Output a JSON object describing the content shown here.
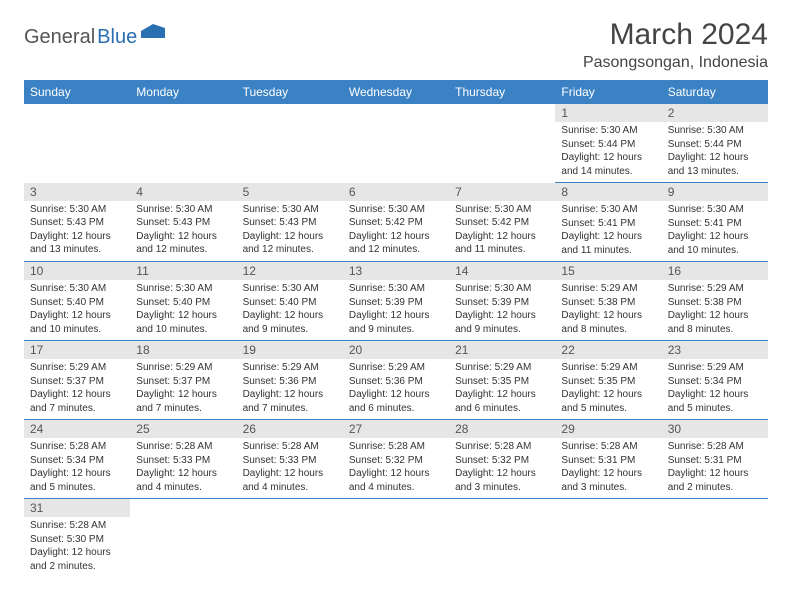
{
  "logo": {
    "text1": "General",
    "text2": "Blue"
  },
  "title": "March 2024",
  "location": "Pasongsongan, Indonesia",
  "colors": {
    "header_bg": "#3b82c4",
    "header_fg": "#ffffff",
    "daynum_bg": "#e6e6e6",
    "border": "#3b82c4",
    "logo_blue": "#2b6fb3",
    "text": "#333333"
  },
  "weekdays": [
    "Sunday",
    "Monday",
    "Tuesday",
    "Wednesday",
    "Thursday",
    "Friday",
    "Saturday"
  ],
  "weeks": [
    [
      {
        "blank": true
      },
      {
        "blank": true
      },
      {
        "blank": true
      },
      {
        "blank": true
      },
      {
        "blank": true
      },
      {
        "n": "1",
        "sunrise": "Sunrise: 5:30 AM",
        "sunset": "Sunset: 5:44 PM",
        "daylight": "Daylight: 12 hours and 14 minutes."
      },
      {
        "n": "2",
        "sunrise": "Sunrise: 5:30 AM",
        "sunset": "Sunset: 5:44 PM",
        "daylight": "Daylight: 12 hours and 13 minutes."
      }
    ],
    [
      {
        "n": "3",
        "sunrise": "Sunrise: 5:30 AM",
        "sunset": "Sunset: 5:43 PM",
        "daylight": "Daylight: 12 hours and 13 minutes."
      },
      {
        "n": "4",
        "sunrise": "Sunrise: 5:30 AM",
        "sunset": "Sunset: 5:43 PM",
        "daylight": "Daylight: 12 hours and 12 minutes."
      },
      {
        "n": "5",
        "sunrise": "Sunrise: 5:30 AM",
        "sunset": "Sunset: 5:43 PM",
        "daylight": "Daylight: 12 hours and 12 minutes."
      },
      {
        "n": "6",
        "sunrise": "Sunrise: 5:30 AM",
        "sunset": "Sunset: 5:42 PM",
        "daylight": "Daylight: 12 hours and 12 minutes."
      },
      {
        "n": "7",
        "sunrise": "Sunrise: 5:30 AM",
        "sunset": "Sunset: 5:42 PM",
        "daylight": "Daylight: 12 hours and 11 minutes."
      },
      {
        "n": "8",
        "sunrise": "Sunrise: 5:30 AM",
        "sunset": "Sunset: 5:41 PM",
        "daylight": "Daylight: 12 hours and 11 minutes."
      },
      {
        "n": "9",
        "sunrise": "Sunrise: 5:30 AM",
        "sunset": "Sunset: 5:41 PM",
        "daylight": "Daylight: 12 hours and 10 minutes."
      }
    ],
    [
      {
        "n": "10",
        "sunrise": "Sunrise: 5:30 AM",
        "sunset": "Sunset: 5:40 PM",
        "daylight": "Daylight: 12 hours and 10 minutes."
      },
      {
        "n": "11",
        "sunrise": "Sunrise: 5:30 AM",
        "sunset": "Sunset: 5:40 PM",
        "daylight": "Daylight: 12 hours and 10 minutes."
      },
      {
        "n": "12",
        "sunrise": "Sunrise: 5:30 AM",
        "sunset": "Sunset: 5:40 PM",
        "daylight": "Daylight: 12 hours and 9 minutes."
      },
      {
        "n": "13",
        "sunrise": "Sunrise: 5:30 AM",
        "sunset": "Sunset: 5:39 PM",
        "daylight": "Daylight: 12 hours and 9 minutes."
      },
      {
        "n": "14",
        "sunrise": "Sunrise: 5:30 AM",
        "sunset": "Sunset: 5:39 PM",
        "daylight": "Daylight: 12 hours and 9 minutes."
      },
      {
        "n": "15",
        "sunrise": "Sunrise: 5:29 AM",
        "sunset": "Sunset: 5:38 PM",
        "daylight": "Daylight: 12 hours and 8 minutes."
      },
      {
        "n": "16",
        "sunrise": "Sunrise: 5:29 AM",
        "sunset": "Sunset: 5:38 PM",
        "daylight": "Daylight: 12 hours and 8 minutes."
      }
    ],
    [
      {
        "n": "17",
        "sunrise": "Sunrise: 5:29 AM",
        "sunset": "Sunset: 5:37 PM",
        "daylight": "Daylight: 12 hours and 7 minutes."
      },
      {
        "n": "18",
        "sunrise": "Sunrise: 5:29 AM",
        "sunset": "Sunset: 5:37 PM",
        "daylight": "Daylight: 12 hours and 7 minutes."
      },
      {
        "n": "19",
        "sunrise": "Sunrise: 5:29 AM",
        "sunset": "Sunset: 5:36 PM",
        "daylight": "Daylight: 12 hours and 7 minutes."
      },
      {
        "n": "20",
        "sunrise": "Sunrise: 5:29 AM",
        "sunset": "Sunset: 5:36 PM",
        "daylight": "Daylight: 12 hours and 6 minutes."
      },
      {
        "n": "21",
        "sunrise": "Sunrise: 5:29 AM",
        "sunset": "Sunset: 5:35 PM",
        "daylight": "Daylight: 12 hours and 6 minutes."
      },
      {
        "n": "22",
        "sunrise": "Sunrise: 5:29 AM",
        "sunset": "Sunset: 5:35 PM",
        "daylight": "Daylight: 12 hours and 5 minutes."
      },
      {
        "n": "23",
        "sunrise": "Sunrise: 5:29 AM",
        "sunset": "Sunset: 5:34 PM",
        "daylight": "Daylight: 12 hours and 5 minutes."
      }
    ],
    [
      {
        "n": "24",
        "sunrise": "Sunrise: 5:28 AM",
        "sunset": "Sunset: 5:34 PM",
        "daylight": "Daylight: 12 hours and 5 minutes."
      },
      {
        "n": "25",
        "sunrise": "Sunrise: 5:28 AM",
        "sunset": "Sunset: 5:33 PM",
        "daylight": "Daylight: 12 hours and 4 minutes."
      },
      {
        "n": "26",
        "sunrise": "Sunrise: 5:28 AM",
        "sunset": "Sunset: 5:33 PM",
        "daylight": "Daylight: 12 hours and 4 minutes."
      },
      {
        "n": "27",
        "sunrise": "Sunrise: 5:28 AM",
        "sunset": "Sunset: 5:32 PM",
        "daylight": "Daylight: 12 hours and 4 minutes."
      },
      {
        "n": "28",
        "sunrise": "Sunrise: 5:28 AM",
        "sunset": "Sunset: 5:32 PM",
        "daylight": "Daylight: 12 hours and 3 minutes."
      },
      {
        "n": "29",
        "sunrise": "Sunrise: 5:28 AM",
        "sunset": "Sunset: 5:31 PM",
        "daylight": "Daylight: 12 hours and 3 minutes."
      },
      {
        "n": "30",
        "sunrise": "Sunrise: 5:28 AM",
        "sunset": "Sunset: 5:31 PM",
        "daylight": "Daylight: 12 hours and 2 minutes."
      }
    ],
    [
      {
        "n": "31",
        "sunrise": "Sunrise: 5:28 AM",
        "sunset": "Sunset: 5:30 PM",
        "daylight": "Daylight: 12 hours and 2 minutes."
      },
      {
        "blank": true
      },
      {
        "blank": true
      },
      {
        "blank": true
      },
      {
        "blank": true
      },
      {
        "blank": true
      },
      {
        "blank": true
      }
    ]
  ]
}
